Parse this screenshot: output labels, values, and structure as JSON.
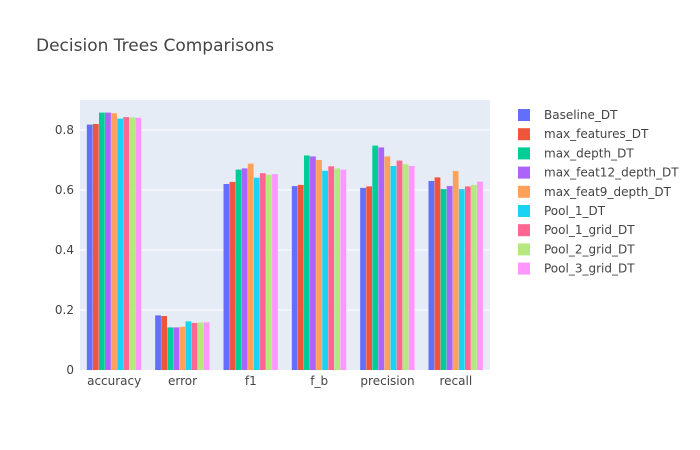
{
  "chart_data": {
    "type": "bar",
    "title": "Decision Trees Comparisons",
    "xlabel": "",
    "ylabel": "",
    "categories": [
      "accuracy",
      "error",
      "f1",
      "f_b",
      "precision",
      "recall"
    ],
    "ylim": [
      0,
      0.9
    ],
    "yticks": [
      0,
      0.2,
      0.4,
      0.6,
      0.8
    ],
    "ytick_labels": [
      "0",
      "0.2",
      "0.4",
      "0.6",
      "0.8"
    ],
    "grid": true,
    "legend_position": "right",
    "series": [
      {
        "name": "Baseline_DT",
        "color": "#636efa",
        "values": [
          0.818,
          0.182,
          0.62,
          0.613,
          0.607,
          0.63
        ]
      },
      {
        "name": "max_features_DT",
        "color": "#EF553B",
        "values": [
          0.82,
          0.18,
          0.627,
          0.617,
          0.612,
          0.642
        ]
      },
      {
        "name": "max_depth_DT",
        "color": "#00cc96",
        "values": [
          0.858,
          0.142,
          0.668,
          0.715,
          0.748,
          0.603
        ]
      },
      {
        "name": "max_feat12_depth_DT",
        "color": "#ab63fa",
        "values": [
          0.858,
          0.142,
          0.672,
          0.712,
          0.742,
          0.613
        ]
      },
      {
        "name": "max_feat9_depth_DT",
        "color": "#FFA15A",
        "values": [
          0.856,
          0.144,
          0.688,
          0.7,
          0.712,
          0.663
        ]
      },
      {
        "name": "Pool_1_DT",
        "color": "#19d3f3",
        "values": [
          0.838,
          0.162,
          0.641,
          0.664,
          0.68,
          0.603
        ]
      },
      {
        "name": "Pool_1_grid_DT",
        "color": "#FF6692",
        "values": [
          0.843,
          0.157,
          0.656,
          0.679,
          0.698,
          0.612
        ]
      },
      {
        "name": "Pool_2_grid_DT",
        "color": "#B6E880",
        "values": [
          0.842,
          0.158,
          0.651,
          0.672,
          0.686,
          0.617
        ]
      },
      {
        "name": "Pool_3_grid_DT",
        "color": "#FF97FF",
        "values": [
          0.841,
          0.159,
          0.653,
          0.668,
          0.68,
          0.628
        ]
      }
    ]
  }
}
